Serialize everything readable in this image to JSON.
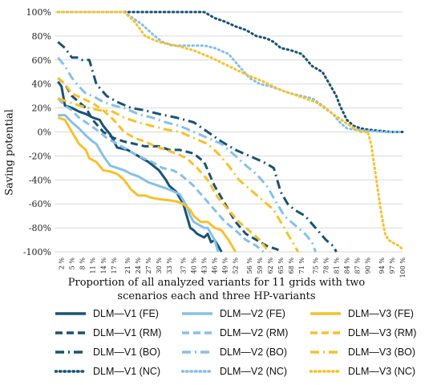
{
  "chart_data": {
    "type": "line",
    "title": "",
    "ylabel": "Saving potential",
    "xlabel": "Proportion of all analyzed variants for 11 grids with two scenarios each and three HP-variants",
    "ylim": [
      -100,
      100
    ],
    "xlim": [
      0,
      100
    ],
    "y_ticks": [
      100,
      80,
      60,
      40,
      20,
      0,
      -20,
      -40,
      -60,
      -80,
      -100
    ],
    "y_tick_labels": [
      "100%",
      "80%",
      "60%",
      "40%",
      "20%",
      "0%",
      "-20%",
      "-40%",
      "-60%",
      "-80%",
      "-100%"
    ],
    "x_ticks": [
      2,
      5,
      8,
      11,
      14,
      17,
      21,
      24,
      27,
      30,
      33,
      37,
      40,
      43,
      46,
      49,
      52,
      56,
      59,
      62,
      65,
      68,
      71,
      75,
      78,
      81,
      84,
      87,
      90,
      94,
      97,
      100
    ],
    "x_tick_labels": [
      "2 %",
      "5 %",
      "8 %",
      "11 %",
      "14 %",
      "17 %",
      "21 %",
      "24 %",
      "27 %",
      "30 %",
      "33 %",
      "37 %",
      "40 %",
      "43 %",
      "46 %",
      "49 %",
      "52 %",
      "56 %",
      "59 %",
      "62 %",
      "65 %",
      "68 %",
      "71 %",
      "75 %",
      "78 %",
      "81 %",
      "84 %",
      "87 %",
      "90 %",
      "94 %",
      "97 %",
      "100 %"
    ],
    "grid": "horizontal",
    "legend_position": "bottom",
    "series": [
      {
        "name": "DLM—V1  (FE)",
        "color": "#1a5276",
        "style": "solid",
        "x": [
          1,
          2,
          3,
          5,
          7,
          9,
          11,
          13,
          14,
          16,
          18,
          21,
          24,
          27,
          30,
          32,
          33,
          35,
          37,
          38,
          39,
          40,
          41,
          43,
          44,
          45,
          46,
          47,
          48
        ],
        "y": [
          42,
          38,
          22,
          20,
          17,
          15,
          12,
          10,
          5,
          -2,
          -13,
          -15,
          -20,
          -25,
          -32,
          -40,
          -45,
          -50,
          -60,
          -70,
          -80,
          -82,
          -85,
          -88,
          -85,
          -92,
          -90,
          -95,
          -100
        ]
      },
      {
        "name": "DLM—V2  (FE)",
        "color": "#85c1e9",
        "style": "solid",
        "x": [
          1,
          3,
          5,
          7,
          9,
          11,
          12,
          14,
          16,
          18,
          20,
          22,
          24,
          27,
          30,
          33,
          36,
          38,
          39,
          40,
          43,
          44,
          45,
          46,
          47
        ],
        "y": [
          14,
          14,
          8,
          3,
          -3,
          -8,
          -10,
          -20,
          -28,
          -30,
          -32,
          -35,
          -37,
          -42,
          -45,
          -48,
          -52,
          -62,
          -70,
          -75,
          -80,
          -80,
          -85,
          -90,
          -100
        ]
      },
      {
        "name": "DLM—V3  (FE)",
        "color": "#f7c12a",
        "style": "solid",
        "x": [
          1,
          3,
          5,
          7,
          9,
          10,
          12,
          14,
          16,
          18,
          20,
          22,
          24,
          26,
          28,
          30,
          33,
          35,
          37,
          39,
          40,
          42,
          44,
          46,
          48,
          50,
          51,
          52
        ],
        "y": [
          12,
          10,
          0,
          -10,
          -15,
          -22,
          -25,
          -32,
          -33,
          -35,
          -40,
          -48,
          -53,
          -53,
          -55,
          -56,
          -57,
          -58,
          -60,
          -65,
          -70,
          -75,
          -75,
          -80,
          -82,
          -90,
          -95,
          -100
        ]
      },
      {
        "name": "DLM—V1  (RM)",
        "color": "#1a5276",
        "style": "dash",
        "x": [
          1,
          3,
          5,
          7,
          9,
          11,
          14,
          17,
          20,
          23,
          26,
          30,
          33,
          36,
          40,
          43,
          46,
          49,
          52,
          55,
          58,
          61,
          64,
          65
        ],
        "y": [
          45,
          40,
          30,
          25,
          20,
          10,
          0,
          -5,
          -8,
          -10,
          -12,
          -12,
          -15,
          -15,
          -18,
          -25,
          -45,
          -60,
          -75,
          -85,
          -90,
          -95,
          -98,
          -100
        ]
      },
      {
        "name": "DLM—V2  (RM)",
        "color": "#85c1e9",
        "style": "dash",
        "x": [
          1,
          3,
          5,
          7,
          9,
          12,
          15,
          18,
          21,
          24,
          28,
          31,
          34,
          36,
          38,
          40,
          43,
          46,
          49,
          52,
          55,
          58,
          60
        ],
        "y": [
          28,
          22,
          18,
          12,
          8,
          2,
          -5,
          -10,
          -15,
          -20,
          -25,
          -30,
          -32,
          -35,
          -40,
          -45,
          -55,
          -65,
          -75,
          -82,
          -90,
          -95,
          -100
        ]
      },
      {
        "name": "DLM—V3  (RM)",
        "color": "#f7c12a",
        "style": "dash",
        "x": [
          1,
          3,
          5,
          8,
          11,
          14,
          17,
          20,
          23,
          26,
          29,
          32,
          35,
          38,
          41,
          44,
          47,
          50,
          53,
          55,
          57,
          59,
          61,
          62
        ],
        "y": [
          45,
          40,
          32,
          28,
          24,
          18,
          10,
          0,
          -5,
          -8,
          -12,
          -15,
          -18,
          -22,
          -30,
          -40,
          -55,
          -65,
          -75,
          -80,
          -85,
          -90,
          -98,
          -100
        ]
      },
      {
        "name": "DLM—V1  (BO)",
        "color": "#1a5276",
        "style": "dashdot",
        "x": [
          1,
          3,
          5,
          7,
          8,
          10,
          12,
          15,
          18,
          22,
          26,
          30,
          35,
          40,
          44,
          48,
          52,
          56,
          60,
          63,
          65,
          67,
          69,
          72,
          75,
          78,
          80,
          81
        ],
        "y": [
          75,
          70,
          62,
          62,
          60,
          60,
          40,
          30,
          25,
          20,
          18,
          15,
          12,
          8,
          0,
          -8,
          -15,
          -20,
          -25,
          -30,
          -50,
          -60,
          -65,
          -70,
          -80,
          -90,
          -95,
          -100
        ]
      },
      {
        "name": "DLM—V2  (BO)",
        "color": "#85c1e9",
        "style": "dashdot",
        "x": [
          1,
          3,
          5,
          7,
          9,
          11,
          14,
          17,
          20,
          24,
          28,
          32,
          36,
          40,
          44,
          48,
          52,
          55,
          58,
          61,
          64,
          66,
          68,
          70,
          72,
          74,
          75
        ],
        "y": [
          62,
          55,
          45,
          38,
          32,
          30,
          25,
          22,
          20,
          15,
          12,
          8,
          5,
          0,
          -5,
          -10,
          -20,
          -28,
          -35,
          -45,
          -60,
          -70,
          -75,
          -80,
          -85,
          -92,
          -100
        ]
      },
      {
        "name": "DLM—V3  (BO)",
        "color": "#f7c12a",
        "style": "dashdot",
        "x": [
          1,
          4,
          7,
          10,
          13,
          16,
          20,
          24,
          28,
          32,
          36,
          40,
          44,
          47,
          50,
          53,
          55,
          57,
          59,
          61,
          63,
          65,
          67,
          69,
          70
        ],
        "y": [
          28,
          25,
          22,
          20,
          18,
          18,
          12,
          8,
          5,
          2,
          0,
          -5,
          -10,
          -18,
          -28,
          -40,
          -45,
          -50,
          -55,
          -60,
          -65,
          -75,
          -85,
          -95,
          -100
        ]
      },
      {
        "name": "DLM—V1  (NC)",
        "color": "#1a5276",
        "style": "dot",
        "x": [
          1,
          10,
          20,
          30,
          35,
          40,
          43,
          46,
          49,
          52,
          55,
          58,
          61,
          63,
          65,
          68,
          71,
          74,
          77,
          79,
          81,
          82,
          84,
          86,
          88,
          90,
          93,
          97,
          100
        ],
        "y": [
          100,
          100,
          100,
          100,
          100,
          100,
          100,
          95,
          92,
          88,
          85,
          80,
          78,
          75,
          70,
          68,
          65,
          55,
          50,
          40,
          30,
          22,
          10,
          5,
          3,
          2,
          1,
          0,
          0
        ]
      },
      {
        "name": "DLM—V2  (NC)",
        "color": "#85c1e9",
        "style": "dot",
        "x": [
          1,
          10,
          20,
          25,
          28,
          31,
          34,
          37,
          40,
          43,
          46,
          50,
          53,
          56,
          59,
          62,
          65,
          68,
          71,
          74,
          77,
          80,
          82,
          84,
          86,
          90,
          95,
          100
        ],
        "y": [
          100,
          100,
          100,
          90,
          82,
          75,
          72,
          72,
          72,
          72,
          70,
          65,
          55,
          45,
          40,
          38,
          35,
          32,
          30,
          28,
          22,
          15,
          8,
          3,
          2,
          1,
          0,
          0
        ]
      },
      {
        "name": "DLM—V3  (NC)",
        "color": "#f7c12a",
        "style": "dot",
        "x": [
          1,
          10,
          20,
          23,
          26,
          30,
          35,
          40,
          45,
          50,
          55,
          60,
          65,
          70,
          75,
          80,
          85,
          88,
          90,
          91,
          92,
          93,
          94,
          95,
          96,
          97,
          99,
          100
        ],
        "y": [
          100,
          100,
          100,
          92,
          80,
          75,
          72,
          68,
          62,
          55,
          48,
          42,
          35,
          30,
          25,
          15,
          5,
          0,
          0,
          -10,
          -30,
          -50,
          -70,
          -85,
          -90,
          -92,
          -95,
          -98
        ]
      }
    ]
  }
}
